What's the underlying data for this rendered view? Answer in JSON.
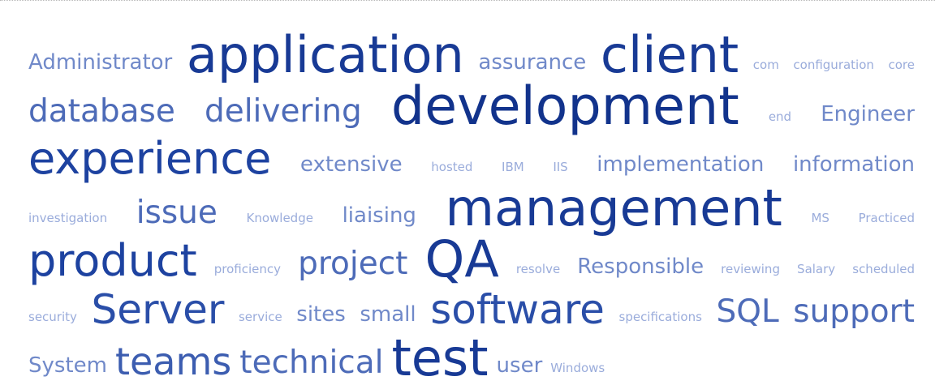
{
  "words": [
    {
      "text": "Administrator",
      "weight": 2
    },
    {
      "text": "application",
      "weight": 8
    },
    {
      "text": "assurance",
      "weight": 2
    },
    {
      "text": "client",
      "weight": 8
    },
    {
      "text": "com",
      "weight": 0
    },
    {
      "text": "configuration",
      "weight": 0
    },
    {
      "text": "core",
      "weight": 0
    },
    {
      "text": "database",
      "weight": 4
    },
    {
      "text": "delivering",
      "weight": 4
    },
    {
      "text": "development",
      "weight": 9
    },
    {
      "text": "end",
      "weight": 0
    },
    {
      "text": "Engineer",
      "weight": 2
    },
    {
      "text": "experience",
      "weight": 7
    },
    {
      "text": "extensive",
      "weight": 2
    },
    {
      "text": "hosted",
      "weight": 0
    },
    {
      "text": "IBM",
      "weight": 0
    },
    {
      "text": "IIS",
      "weight": 0
    },
    {
      "text": "implementation",
      "weight": 2
    },
    {
      "text": "information",
      "weight": 2
    },
    {
      "text": "investigation",
      "weight": 0
    },
    {
      "text": "issue",
      "weight": 4
    },
    {
      "text": "Knowledge",
      "weight": 0
    },
    {
      "text": "liaising",
      "weight": 2
    },
    {
      "text": "management",
      "weight": 8
    },
    {
      "text": "MS",
      "weight": 0
    },
    {
      "text": "Practiced",
      "weight": 0
    },
    {
      "text": "product",
      "weight": 7
    },
    {
      "text": "proficiency",
      "weight": 0
    },
    {
      "text": "project",
      "weight": 4
    },
    {
      "text": "QA",
      "weight": 8
    },
    {
      "text": "resolve",
      "weight": 0
    },
    {
      "text": "Responsible",
      "weight": 2
    },
    {
      "text": "reviewing",
      "weight": 0
    },
    {
      "text": "Salary",
      "weight": 0
    },
    {
      "text": "scheduled",
      "weight": 0
    },
    {
      "text": "security",
      "weight": 0
    },
    {
      "text": "Server",
      "weight": 6
    },
    {
      "text": "service",
      "weight": 0
    },
    {
      "text": "sites",
      "weight": 2
    },
    {
      "text": "small",
      "weight": 2
    },
    {
      "text": "software",
      "weight": 6
    },
    {
      "text": "specifications",
      "weight": 0
    },
    {
      "text": "SQL",
      "weight": 4
    },
    {
      "text": "support",
      "weight": 4
    },
    {
      "text": "System",
      "weight": 2
    },
    {
      "text": "teams",
      "weight": 5
    },
    {
      "text": "technical",
      "weight": 4
    },
    {
      "text": "test",
      "weight": 8
    },
    {
      "text": "user",
      "weight": 2
    },
    {
      "text": "Windows",
      "weight": 0
    }
  ]
}
